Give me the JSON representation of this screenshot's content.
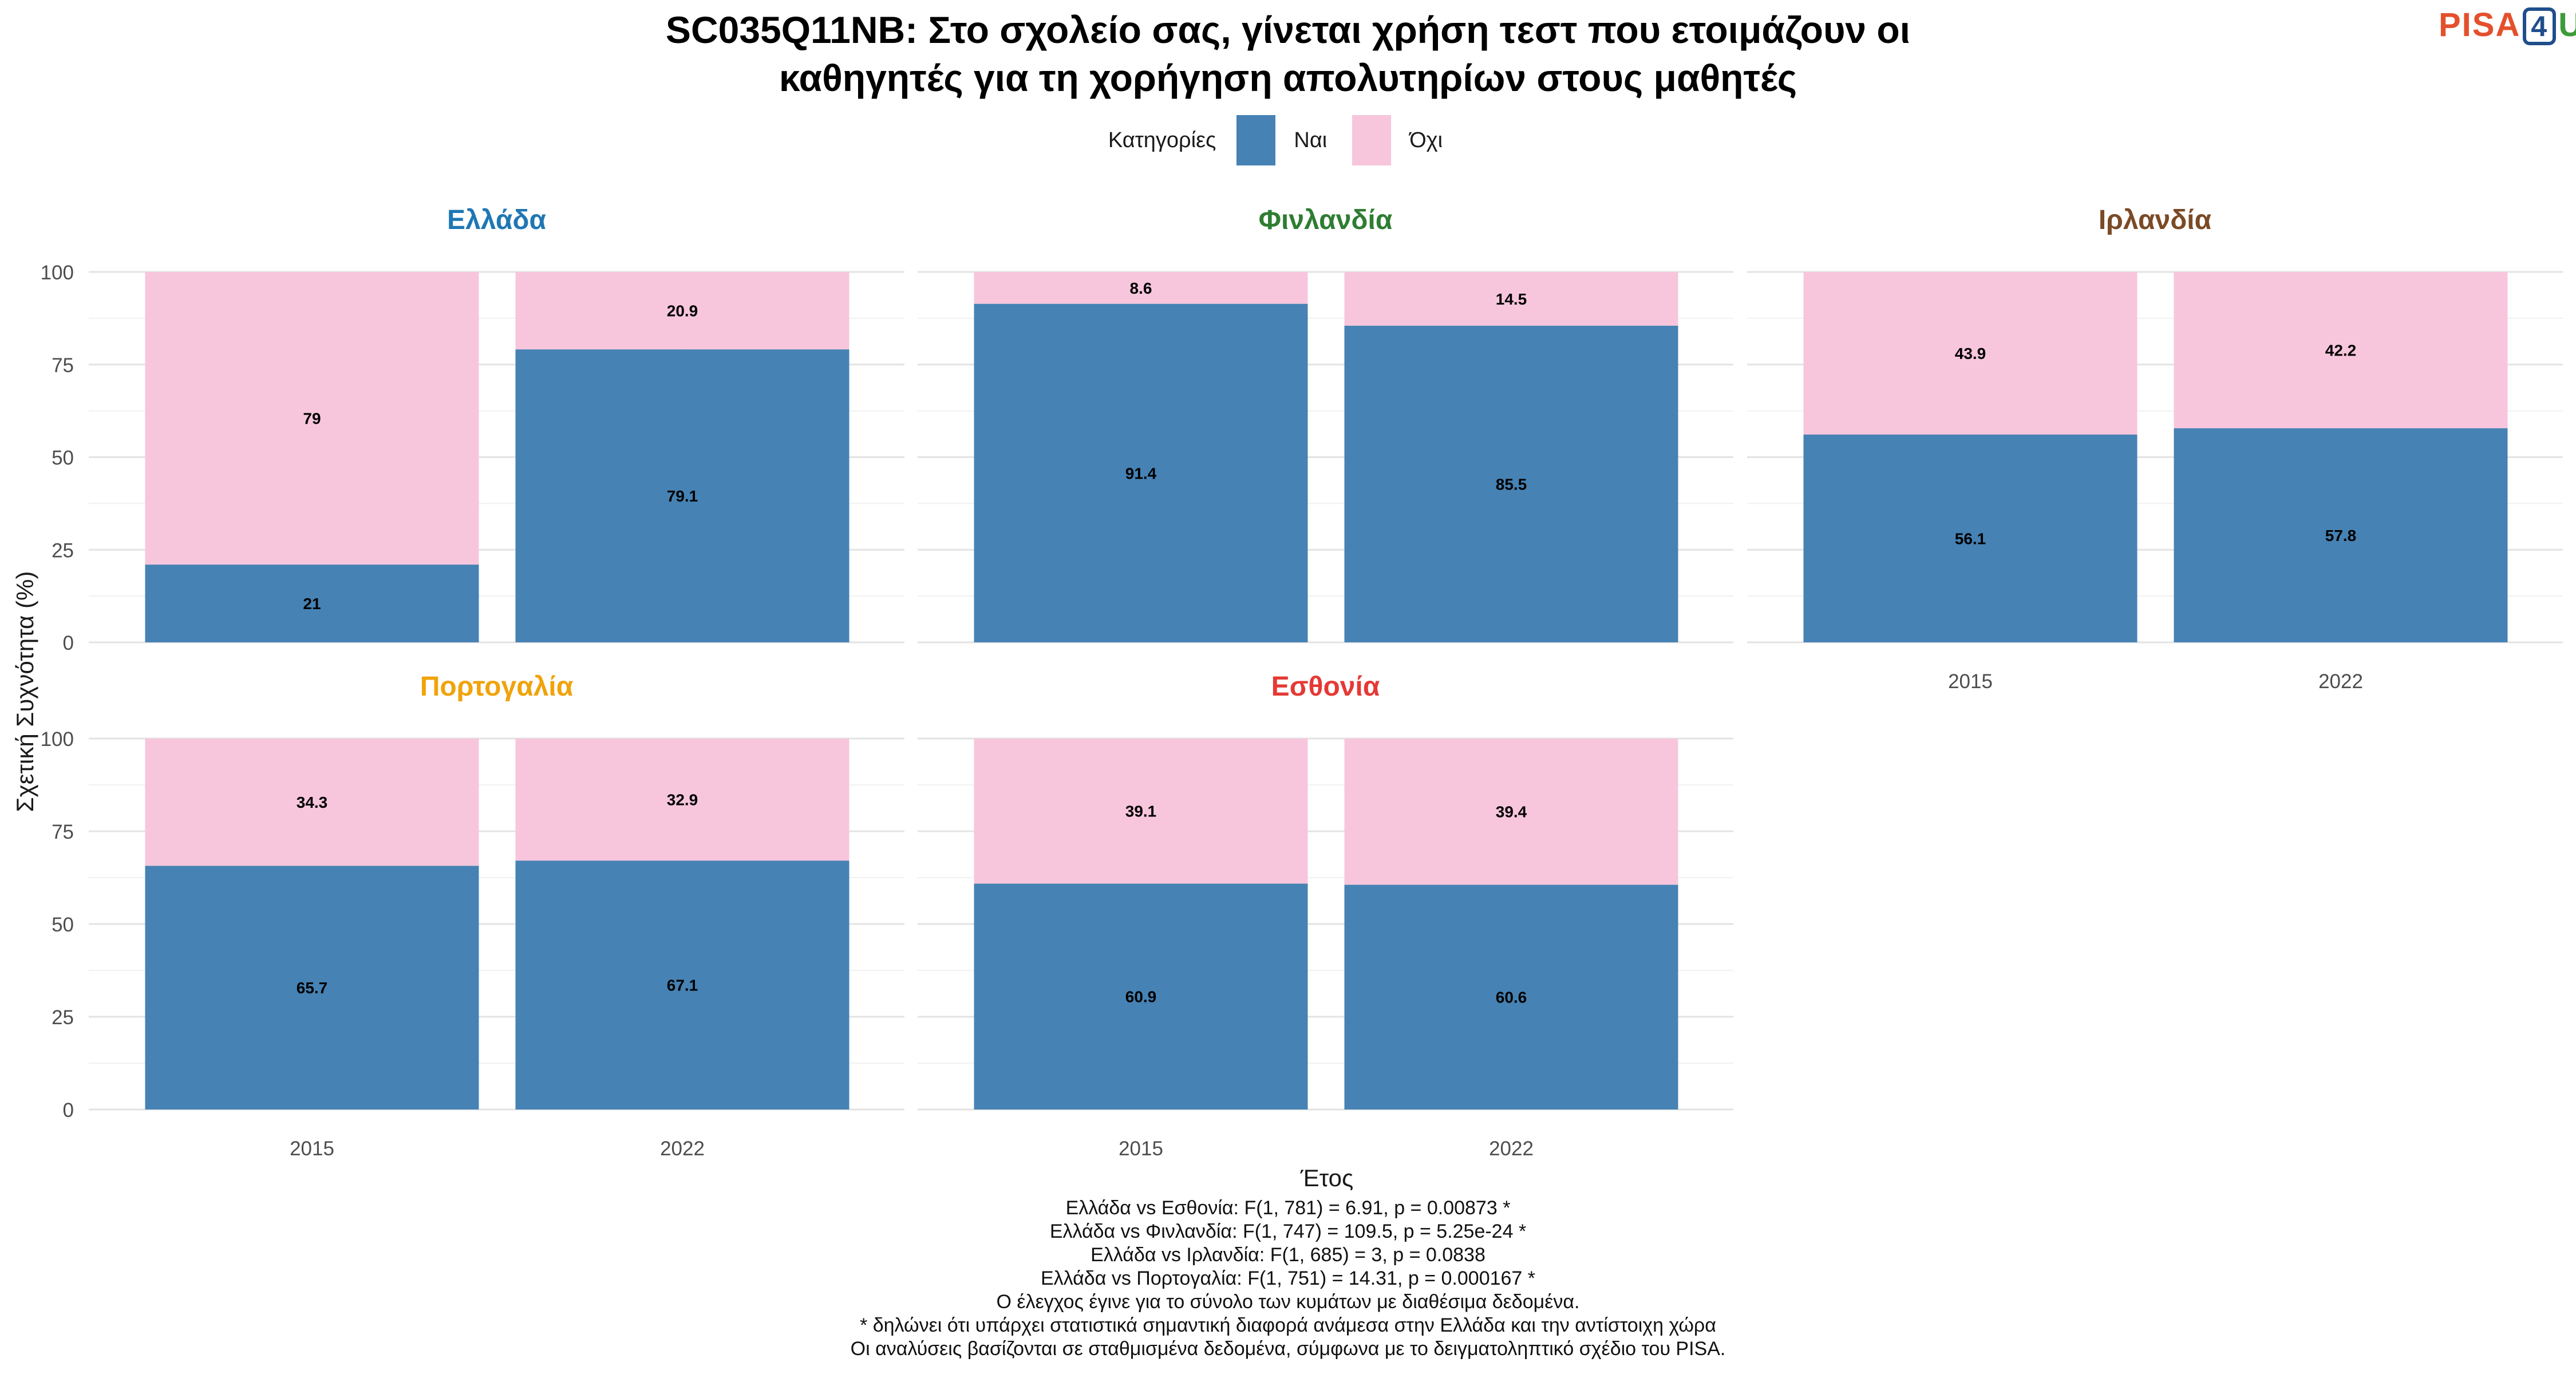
{
  "title_lines": [
    "SC035Q11NB: Στο σχολείο σας, γίνεται χρήση τεστ που ετοιμάζουν οι",
    "καθηγητές για τη χορήγηση απολυτηρίων στους μαθητές"
  ],
  "logo": {
    "part1": "PISA",
    "part2": "4",
    "part3": "U"
  },
  "legend": {
    "title": "Κατηγορίες",
    "items": [
      {
        "label": "Ναι",
        "color": "#4682b4"
      },
      {
        "label": "Όχι",
        "color": "#f7c6dc"
      }
    ]
  },
  "footer_lines": [
    "Ελλάδα vs Εσθονία: F(1, 781) = 6.91, p = 0.00873 *",
    "Ελλάδα vs Φινλανδία: F(1, 747) = 109.5, p = 5.25e-24 *",
    "Ελλάδα vs Ιρλανδία: F(1, 685) = 3, p = 0.0838",
    "Ελλάδα vs Πορτογαλία: F(1, 751) = 14.31, p = 0.000167 *",
    "Ο έλεγχος έγινε για το σύνολο των κυμάτων με διαθέσιμα δεδομένα.",
    "* δηλώνει ότι υπάρχει στατιστικά σημαντική διαφορά ανάμεσα στην Ελλάδα και την αντίστοιχη χώρα",
    "Οι αναλύσεις βασίζονται σε σταθμισμένα δεδομένα, σύμφωνα με το δειγματοληπτικό σχέδιο του PISA."
  ],
  "chart_data": {
    "type": "bar",
    "stacked": true,
    "xlabel": "Έτος",
    "ylabel": "Σχετική Συχνότητα (%)",
    "ylim": [
      0,
      100
    ],
    "yticks": [
      0,
      25,
      50,
      75,
      100
    ],
    "categories": [
      "2015",
      "2022"
    ],
    "grid": true,
    "legend_position": "top",
    "panels": [
      {
        "name": "Ελλάδα",
        "title_color": "#1f77b4",
        "series": [
          {
            "name": "Ναι",
            "values": [
              21,
              79.1
            ]
          },
          {
            "name": "Όχι",
            "values": [
              79,
              20.9
            ]
          }
        ]
      },
      {
        "name": "Φινλανδία",
        "title_color": "#2e7d32",
        "series": [
          {
            "name": "Ναι",
            "values": [
              91.4,
              85.5
            ]
          },
          {
            "name": "Όχι",
            "values": [
              8.6,
              14.5
            ]
          }
        ]
      },
      {
        "name": "Ιρλανδία",
        "title_color": "#7b4a26",
        "series": [
          {
            "name": "Ναι",
            "values": [
              56.1,
              57.8
            ]
          },
          {
            "name": "Όχι",
            "values": [
              43.9,
              42.2
            ]
          }
        ]
      },
      {
        "name": "Πορτογαλία",
        "title_color": "#f0a30a",
        "series": [
          {
            "name": "Ναι",
            "values": [
              65.7,
              67.1
            ]
          },
          {
            "name": "Όχι",
            "values": [
              34.3,
              32.9
            ]
          }
        ]
      },
      {
        "name": "Εσθονία",
        "title_color": "#e53935",
        "series": [
          {
            "name": "Ναι",
            "values": [
              60.9,
              60.6
            ]
          },
          {
            "name": "Όχι",
            "values": [
              39.1,
              39.4
            ]
          }
        ]
      }
    ]
  }
}
